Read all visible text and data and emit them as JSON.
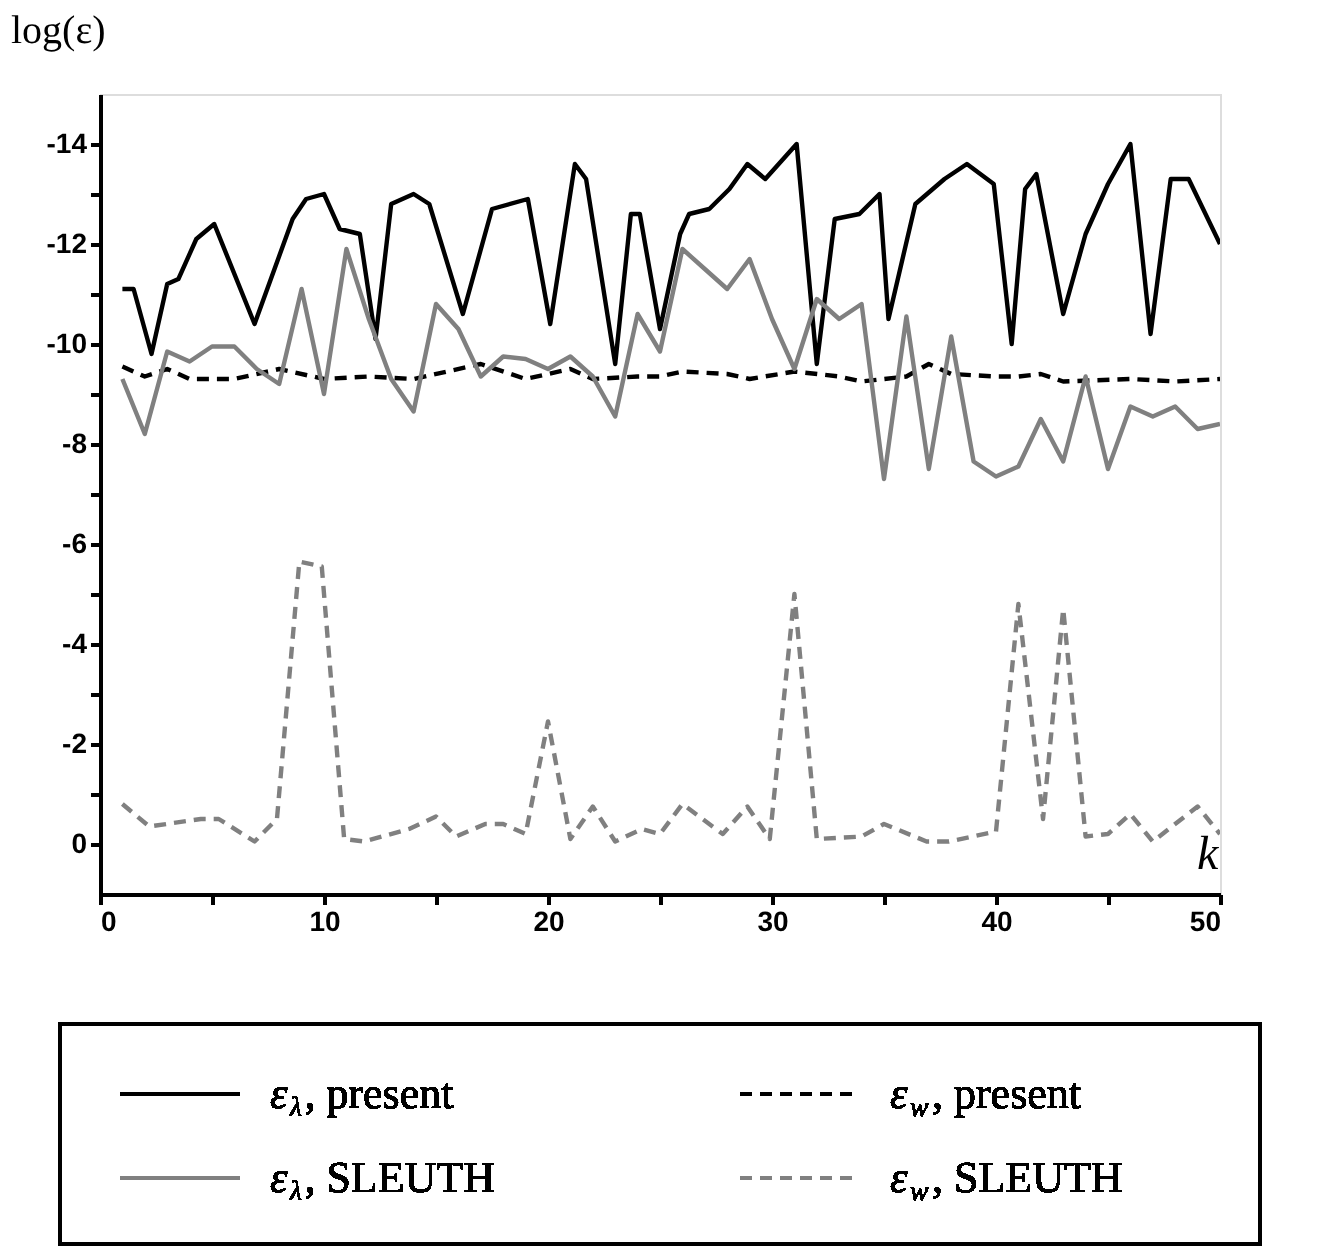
{
  "chart_data": {
    "type": "line",
    "xlabel": "k",
    "ylabel": "log(ε)",
    "xlim": [
      0,
      50
    ],
    "ylim": [
      1,
      -15
    ],
    "xticks": [
      0,
      {
        "value": 5,
        "label": null
      },
      10,
      {
        "value": 15,
        "label": null
      },
      20,
      {
        "value": 25,
        "label": null
      },
      30,
      {
        "value": 35,
        "label": null
      },
      40,
      {
        "value": 45,
        "label": null
      },
      50
    ],
    "yticks": [
      -14,
      {
        "value": -13,
        "label": null
      },
      -12,
      {
        "value": -11,
        "label": null
      },
      -10,
      {
        "value": -9,
        "label": null
      },
      -8,
      {
        "value": -7,
        "label": null
      },
      -6,
      {
        "value": -5,
        "label": null
      },
      -4,
      {
        "value": -3,
        "label": null
      },
      -2,
      {
        "value": -1,
        "label": null
      },
      0
    ],
    "grid": false,
    "legend": "bottom",
    "marker": "none",
    "series": [
      {
        "name": "ε$_{λ}$, present",
        "color": "#000000",
        "line_style": "solid",
        "x": [
          1.0,
          1.5,
          2.3,
          3.0,
          3.5,
          4.3,
          5.1,
          6.9,
          8.6,
          9.2,
          10.0,
          10.7,
          11.6,
          12.3,
          13.0,
          14.0,
          14.7,
          16.2,
          17.5,
          19.1,
          20.1,
          21.2,
          21.7,
          23.0,
          23.7,
          24.1,
          25.0,
          25.9,
          26.3,
          27.2,
          28.1,
          28.9,
          29.7,
          31.1,
          32.0,
          32.8,
          33.9,
          34.8,
          35.2,
          36.4,
          37.7,
          38.7,
          39.9,
          40.7,
          41.3,
          41.8,
          43.0,
          44.0,
          45.0,
          46.0,
          46.9,
          47.8,
          48.6,
          50.0
        ],
        "values": [
          -11.1,
          -11.1,
          -9.8,
          -11.2,
          -11.3,
          -12.1,
          -12.4,
          -10.4,
          -12.5,
          -12.9,
          -13.0,
          -12.3,
          -12.2,
          -10.1,
          -12.8,
          -13.0,
          -12.8,
          -10.6,
          -12.7,
          -12.9,
          -10.4,
          -13.6,
          -13.3,
          -9.6,
          -12.6,
          -12.6,
          -10.3,
          -12.2,
          -12.6,
          -12.7,
          -13.1,
          -13.6,
          -13.3,
          -14.0,
          -9.6,
          -12.5,
          -12.6,
          -13.0,
          -10.5,
          -12.8,
          -13.3,
          -13.6,
          -13.2,
          -10.0,
          -13.1,
          -13.4,
          -10.6,
          -12.2,
          -13.2,
          -14.0,
          -10.2,
          -13.3,
          -13.3,
          -12.0
        ]
      },
      {
        "name": "ε$_{w}$, present",
        "color": "#000000",
        "line_style": "dashed",
        "x": [
          1,
          2,
          3,
          4,
          6,
          8,
          10,
          12,
          14,
          17,
          19,
          21,
          22,
          24,
          25,
          26,
          28,
          29,
          31,
          33,
          34,
          36,
          37,
          38,
          40,
          41,
          42,
          43,
          46,
          48,
          50
        ],
        "values": [
          -9.55,
          -9.35,
          -9.5,
          -9.3,
          -9.3,
          -9.5,
          -9.3,
          -9.35,
          -9.3,
          -9.6,
          -9.3,
          -9.5,
          -9.3,
          -9.35,
          -9.35,
          -9.45,
          -9.4,
          -9.3,
          -9.45,
          -9.35,
          -9.25,
          -9.35,
          -9.6,
          -9.4,
          -9.35,
          -9.35,
          -9.4,
          -9.25,
          -9.3,
          -9.25,
          -9.3
        ]
      },
      {
        "name": "ε$_{λ}$, SLEUTH",
        "color": "#808080",
        "line_style": "solid",
        "x": [
          1,
          2,
          3,
          4,
          5,
          6,
          7,
          8,
          9,
          10,
          11,
          12,
          13,
          14,
          15,
          16,
          17,
          18,
          19,
          20,
          21,
          22,
          23,
          24,
          25,
          26,
          27,
          28,
          29,
          30,
          31,
          32,
          33,
          34,
          35,
          36,
          37,
          38,
          39,
          40,
          41,
          42,
          43,
          44,
          45,
          46,
          47,
          48,
          49,
          50
        ],
        "values": [
          -9.3,
          -8.2,
          -9.85,
          -9.65,
          -9.95,
          -9.95,
          -9.5,
          -9.2,
          -11.1,
          -9.0,
          -11.9,
          -10.5,
          -9.3,
          -8.65,
          -10.8,
          -10.3,
          -9.35,
          -9.75,
          -9.7,
          -9.5,
          -9.75,
          -9.35,
          -8.55,
          -10.6,
          -9.85,
          -11.9,
          -11.5,
          -11.1,
          -11.7,
          -10.5,
          -9.5,
          -10.9,
          -10.5,
          -10.8,
          -7.3,
          -10.55,
          -7.5,
          -10.15,
          -7.65,
          -7.35,
          -7.55,
          -8.5,
          -7.65,
          -9.35,
          -7.5,
          -8.75,
          -8.55,
          -8.75,
          -8.3,
          -8.4
        ]
      },
      {
        "name": "ε$_{w}$, SLEUTH",
        "color": "#808080",
        "line_style": "dashed",
        "x": [
          1,
          2.2,
          4.5,
          5.3,
          6.9,
          7.9,
          8.9,
          9.9,
          10.9,
          11.8,
          13.8,
          15,
          15.9,
          17.2,
          18,
          19,
          20,
          21,
          22,
          23,
          24.2,
          25,
          26,
          27.8,
          28.9,
          29.9,
          31,
          32,
          34,
          35,
          36.9,
          37.9,
          40,
          41,
          42.1,
          43,
          44,
          45,
          46,
          47,
          49,
          50
        ],
        "values": [
          -0.8,
          -0.35,
          -0.5,
          -0.5,
          -0.05,
          -0.5,
          -5.65,
          -5.55,
          -0.1,
          -0.05,
          -0.3,
          -0.55,
          -0.15,
          -0.4,
          -0.4,
          -0.2,
          -2.45,
          -0.1,
          -0.75,
          -0.05,
          -0.3,
          -0.2,
          -0.8,
          -0.2,
          -0.75,
          -0.1,
          -5.0,
          -0.1,
          -0.15,
          -0.4,
          -0.05,
          -0.05,
          -0.25,
          -4.8,
          -0.5,
          -4.7,
          -0.15,
          -0.2,
          -0.6,
          -0.05,
          -0.75,
          -0.2
        ]
      }
    ]
  }
}
